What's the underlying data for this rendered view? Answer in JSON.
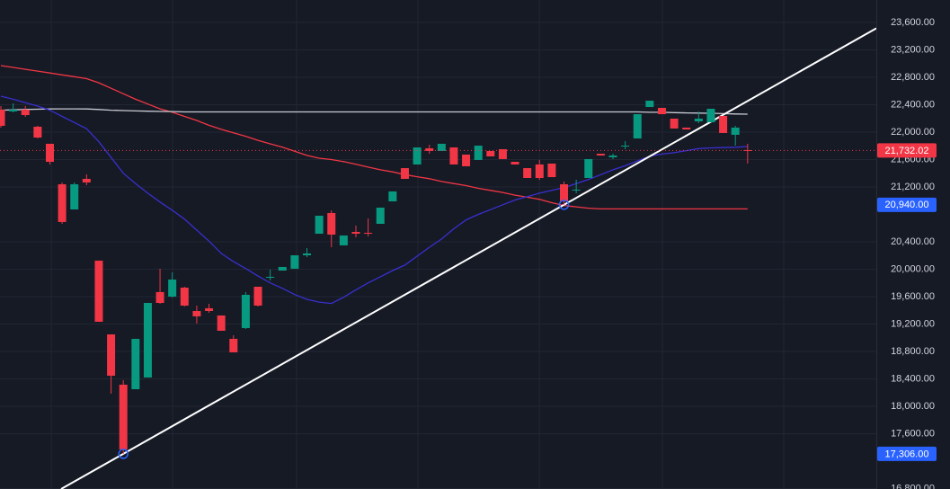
{
  "chart_data": {
    "type": "candlestick",
    "up_color": "#089981",
    "down_color": "#f23645",
    "ylim": [
      16793,
      23928
    ],
    "yticks": [
      {
        "value": 16800,
        "label": "16,800.00"
      },
      {
        "value": 17600,
        "label": "17,600.00"
      },
      {
        "value": 18000,
        "label": "18,000.00"
      },
      {
        "value": 18400,
        "label": "18,400.00"
      },
      {
        "value": 18800,
        "label": "18,800.00"
      },
      {
        "value": 19200,
        "label": "19,200.00"
      },
      {
        "value": 19600,
        "label": "19,600.00"
      },
      {
        "value": 20000,
        "label": "20,000.00"
      },
      {
        "value": 20400,
        "label": "20,400.00"
      },
      {
        "value": 21200,
        "label": "21,200.00"
      },
      {
        "value": 21600,
        "label": "21,600.00"
      },
      {
        "value": 22000,
        "label": "22,000.00"
      },
      {
        "value": 22400,
        "label": "22,400.00"
      },
      {
        "value": 22800,
        "label": "22,800.00"
      },
      {
        "value": 23200,
        "label": "23,200.00"
      },
      {
        "value": 23600,
        "label": "23,600.00"
      }
    ],
    "grid": true,
    "open": [
      22328,
      22302,
      22328,
      22079,
      21830,
      21239,
      20872,
      21318,
      20125,
      19049,
      18315,
      18249,
      18420,
      19666,
      19600,
      19731,
      19390,
      19430,
      19325,
      18984,
      19141,
      19744,
      19875,
      19980,
      20007,
      20203,
      20518,
      20820,
      20348,
      20544,
      20531,
      20662,
      20990,
      21475,
      21528,
      21764,
      21725,
      21777,
      21672,
      21594,
      21725,
      21751,
      21567,
      21475,
      21528,
      21541,
      21239,
      21148,
      21331,
      21685,
      21633,
      21790,
      21908,
      22367,
      22354,
      22197,
      22066,
      22157,
      22144,
      22236,
      21961,
      21738
    ],
    "high": [
      22380,
      22420,
      22380,
      22092,
      21830,
      21266,
      21266,
      21384,
      20125,
      19049,
      18380,
      18984,
      19508,
      20007,
      19954,
      19744,
      19469,
      19495,
      19325,
      19036,
      19666,
      19744,
      19993,
      20033,
      20203,
      20308,
      20780,
      20859,
      20492,
      20636,
      20741,
      20898,
      21135,
      21475,
      21777,
      21816,
      21830,
      21777,
      21672,
      21803,
      21725,
      21751,
      21567,
      21475,
      21594,
      21541,
      21279,
      21305,
      21607,
      21685,
      21685,
      21869,
      22262,
      22459,
      22354,
      22197,
      22066,
      22302,
      22341,
      22236,
      22092,
      21830
    ],
    "low": [
      22066,
      22289,
      22223,
      21908,
      21528,
      20662,
      20872,
      21226,
      19233,
      18184,
      17306,
      18249,
      18420,
      19495,
      19587,
      19456,
      19207,
      19364,
      19102,
      18787,
      19128,
      19456,
      19836,
      19980,
      20007,
      20177,
      20518,
      20321,
      20348,
      20466,
      20479,
      20662,
      20990,
      21318,
      21528,
      21685,
      21725,
      21528,
      21502,
      21594,
      21646,
      21607,
      21528,
      21331,
      21305,
      21344,
      20940,
      21108,
      21331,
      21659,
      21607,
      21751,
      21908,
      22367,
      22262,
      22053,
      22039,
      22131,
      22144,
      21987,
      21803,
      21541
    ],
    "close": [
      22092,
      22328,
      22249,
      21921,
      21567,
      20689,
      21239,
      21266,
      19233,
      18446,
      17370,
      18984,
      19508,
      19508,
      19849,
      19469,
      19312,
      19390,
      19102,
      18787,
      19626,
      19469,
      19889,
      20033,
      20203,
      20230,
      20780,
      20505,
      20492,
      20518,
      20518,
      20898,
      21135,
      21318,
      21777,
      21725,
      21830,
      21528,
      21502,
      21803,
      21646,
      21607,
      21528,
      21331,
      21331,
      21344,
      20990,
      21161,
      21607,
      21659,
      21659,
      21803,
      22262,
      22459,
      22262,
      22053,
      22039,
      22197,
      22341,
      21987,
      22066,
      21732.02
    ],
    "series": [
      {
        "color": "#f23645",
        "values": [
          22971,
          22944,
          22917,
          22890,
          22863,
          22836,
          22809,
          22780,
          22720,
          22640,
          22560,
          22480,
          22410,
          22340,
          22290,
          22230,
          22170,
          22100,
          22040,
          21990,
          21940,
          21880,
          21830,
          21780,
          21720,
          21660,
          21620,
          21600,
          21570,
          21530,
          21490,
          21450,
          21420,
          21380,
          21350,
          21320,
          21280,
          21250,
          21220,
          21180,
          21150,
          21120,
          21080,
          21050,
          21020,
          20970,
          20930,
          20910,
          20890,
          20880,
          20880,
          20880,
          20880,
          20880,
          20880,
          20880,
          20880,
          20880,
          20880,
          20880,
          20880,
          20880
        ]
      },
      {
        "color": "#c8cad3",
        "values": [
          22320,
          22325,
          22330,
          22335,
          22338,
          22340,
          22340,
          22339,
          22330,
          22320,
          22315,
          22310,
          22305,
          22302,
          22300,
          22295,
          22295,
          22295,
          22295,
          22295,
          22295,
          22295,
          22295,
          22295,
          22295,
          22295,
          22295,
          22295,
          22295,
          22295,
          22295,
          22295,
          22295,
          22295,
          22295,
          22295,
          22295,
          22295,
          22295,
          22295,
          22295,
          22295,
          22295,
          22295,
          22295,
          22295,
          22295,
          22295,
          22295,
          22295,
          22295,
          22295,
          22295,
          22290,
          22290,
          22285,
          22280,
          22278,
          22275,
          22270,
          22265,
          22262
        ]
      },
      {
        "color": "#3a2fd0",
        "values": [
          22525,
          22480,
          22430,
          22380,
          22320,
          22230,
          22140,
          22050,
          21860,
          21630,
          21400,
          21250,
          21110,
          20980,
          20860,
          20730,
          20570,
          20410,
          20230,
          20110,
          20010,
          19900,
          19800,
          19720,
          19630,
          19560,
          19520,
          19500,
          19590,
          19700,
          19800,
          19890,
          19980,
          20060,
          20190,
          20320,
          20440,
          20590,
          20720,
          20800,
          20870,
          20940,
          21010,
          21060,
          21110,
          21150,
          21190,
          21250,
          21310,
          21380,
          21450,
          21510,
          21580,
          21650,
          21680,
          21700,
          21730,
          21760,
          21770,
          21775,
          21780,
          21790
        ]
      }
    ],
    "trendline": {
      "color": "#ffffff",
      "x": [
        10,
        46
      ],
      "values": [
        17306,
        20940
      ]
    },
    "price_labels": [
      {
        "value": 21732.02,
        "label": "21,732.02",
        "color": "#f23645"
      },
      {
        "value": 20940,
        "label": "20,940.00",
        "color": "#2962ff"
      },
      {
        "value": 17306,
        "label": "17,306.00",
        "color": "#2962ff"
      }
    ]
  }
}
